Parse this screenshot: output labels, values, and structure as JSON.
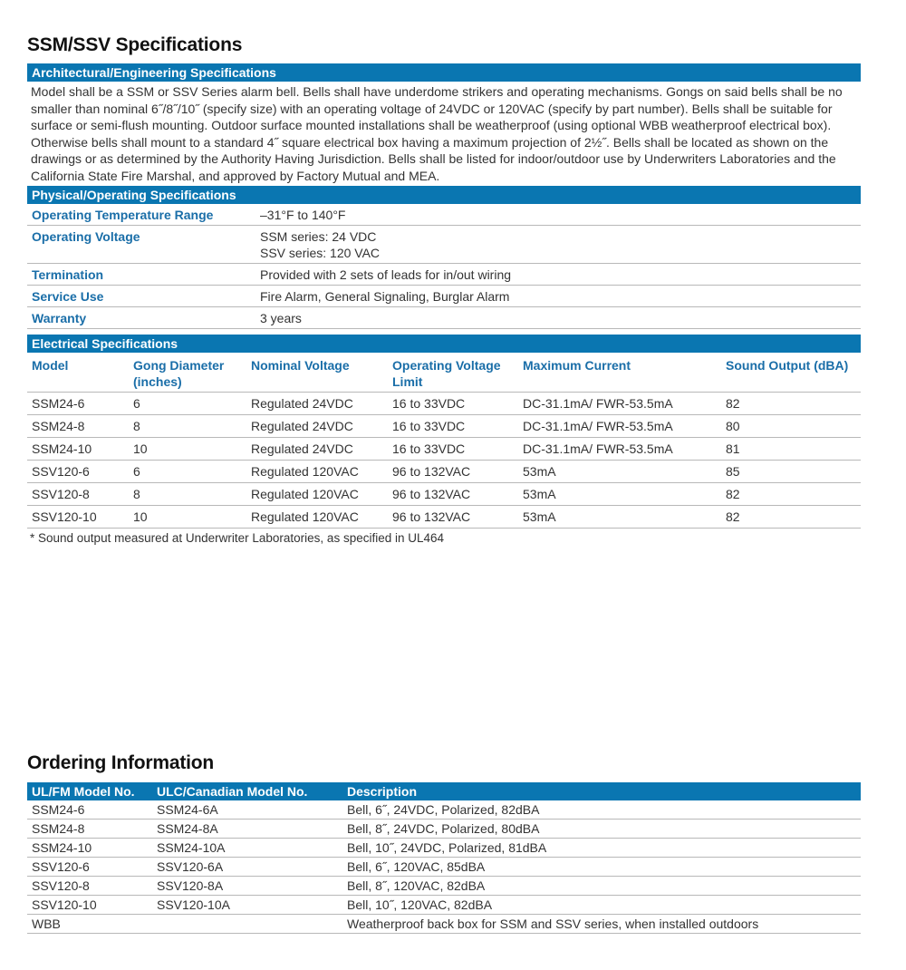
{
  "title": "SSM/SSV Specifications",
  "architectural": {
    "heading": "Architectural/Engineering Specifications",
    "text": "Model shall be a SSM or SSV Series alarm bell. Bells shall have underdome strikers and operating mechanisms. Gongs on said bells shall be no smaller than nominal 6˝/8˝/10˝ (specify size) with an operating voltage of 24VDC or 120VAC (specify by part number). Bells shall be suitable for surface or semi-flush mounting. Outdoor surface mounted installations shall be weatherproof (using optional WBB weatherproof electrical box). Otherwise bells shall mount to a standard 4˝ square electrical box having a maximum projection of 2½˝. Bells shall be located as shown on the drawings or as determined by the Authority Having Jurisdiction. Bells shall be listed for indoor/outdoor use by Underwriters Laboratories and the California State Fire Marshal, and approved by Factory Mutual and MEA."
  },
  "physical": {
    "heading": "Physical/Operating Specifications",
    "rows": [
      {
        "label": "Operating Temperature Range",
        "value": "–31°F to 140°F",
        "value2": ""
      },
      {
        "label": "Operating Voltage",
        "value": "SSM series: 24 VDC",
        "value2": "SSV series: 120 VAC"
      },
      {
        "label": "Termination",
        "value": "Provided with 2 sets of leads for in/out wiring",
        "value2": ""
      },
      {
        "label": "Service Use",
        "value": "Fire Alarm, General Signaling, Burglar Alarm",
        "value2": ""
      },
      {
        "label": "Warranty",
        "value": "3 years",
        "value2": ""
      }
    ]
  },
  "electrical": {
    "heading": "Electrical Specifications",
    "columns": [
      "Model",
      "Gong Diameter (inches)",
      "Nominal Voltage",
      "Operating Voltage Limit",
      "Maximum Current",
      "Sound Output (dBA)"
    ],
    "rows": [
      [
        "SSM24-6",
        "6",
        "Regulated 24VDC",
        "16 to 33VDC",
        "DC-31.1mA/ FWR-53.5mA",
        "82"
      ],
      [
        "SSM24-8",
        "8",
        "Regulated 24VDC",
        "16 to 33VDC",
        "DC-31.1mA/ FWR-53.5mA",
        "80"
      ],
      [
        "SSM24-10",
        "10",
        "Regulated 24VDC",
        "16 to 33VDC",
        "DC-31.1mA/ FWR-53.5mA",
        "81"
      ],
      [
        "SSV120-6",
        "6",
        "Regulated 120VAC",
        "96 to 132VAC",
        "53mA",
        "85"
      ],
      [
        "SSV120-8",
        "8",
        "Regulated 120VAC",
        "96 to 132VAC",
        "53mA",
        "82"
      ],
      [
        "SSV120-10",
        "10",
        "Regulated 120VAC",
        "96 to 132VAC",
        "53mA",
        "82"
      ]
    ],
    "footnote": "* Sound output measured at Underwriter Laboratories, as specified in UL464"
  },
  "ordering": {
    "title": "Ordering Information",
    "columns": [
      "UL/FM Model No.",
      "ULC/Canadian Model No.",
      "Description"
    ],
    "rows": [
      [
        "SSM24-6",
        "SSM24-6A",
        "Bell, 6˝, 24VDC, Polarized, 82dBA"
      ],
      [
        "SSM24-8",
        "SSM24-8A",
        "Bell, 8˝, 24VDC, Polarized, 80dBA"
      ],
      [
        "SSM24-10",
        "SSM24-10A",
        "Bell, 10˝, 24VDC, Polarized, 81dBA"
      ],
      [
        "SSV120-6",
        "SSV120-6A",
        "Bell, 6˝, 120VAC, 85dBA"
      ],
      [
        "SSV120-8",
        "SSV120-8A",
        "Bell, 8˝, 120VAC, 82dBA"
      ],
      [
        "SSV120-10",
        "SSV120-10A",
        "Bell, 10˝, 120VAC, 82dBA"
      ],
      [
        "WBB",
        "",
        "Weatherproof back box for SSM and SSV series, when installed outdoors"
      ]
    ]
  },
  "colors": {
    "accent": "#0a76b1",
    "label": "#1a6ea8"
  }
}
